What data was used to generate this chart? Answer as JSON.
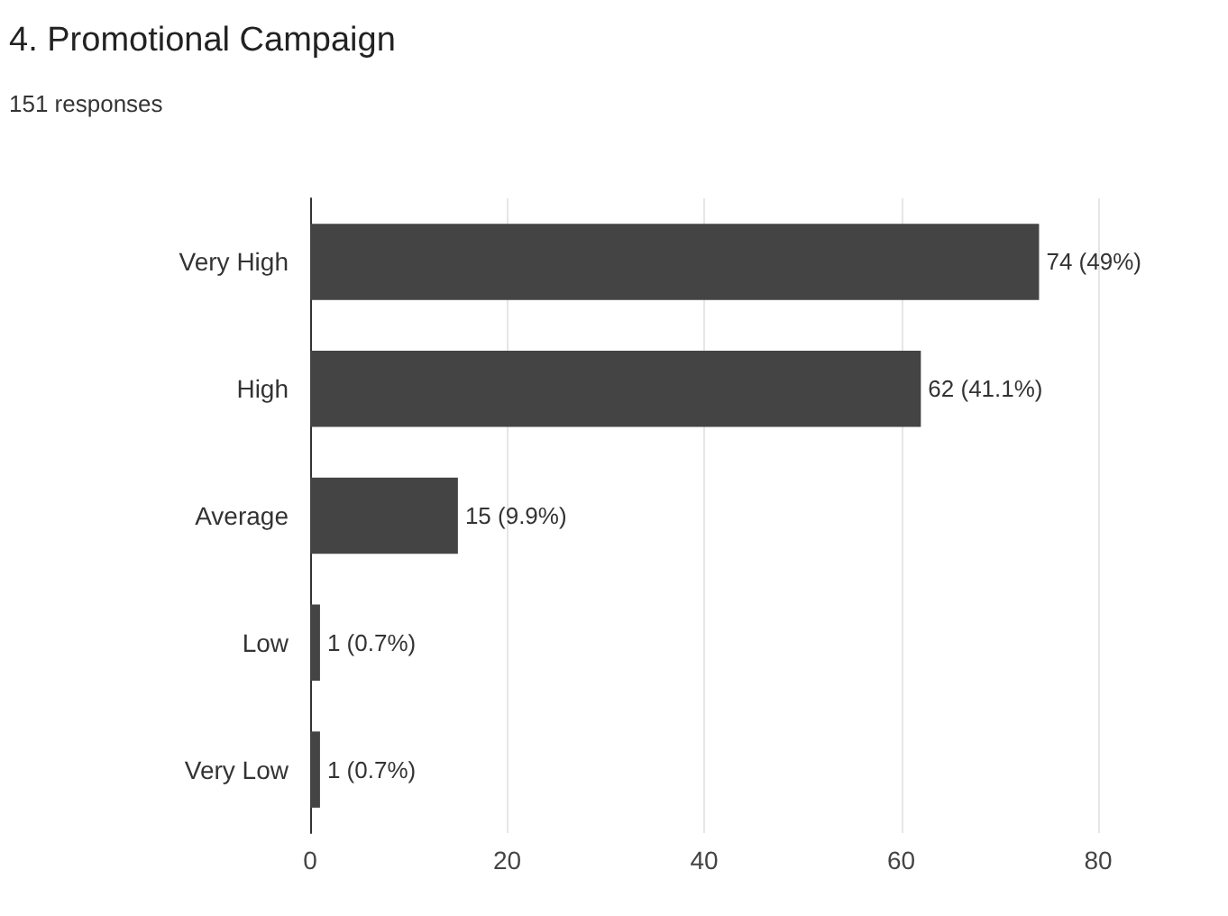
{
  "chart_data": {
    "type": "bar",
    "orientation": "horizontal",
    "title": "4. Promotional Campaign",
    "subtitle": "151 responses",
    "categories": [
      "Very High",
      "High",
      "Average",
      "Low",
      "Very Low"
    ],
    "values": [
      74,
      62,
      15,
      1,
      1
    ],
    "value_labels": [
      "74 (49%)",
      "62 (41.1%)",
      "15 (9.9%)",
      "1 (0.7%)",
      "1 (0.7%)"
    ],
    "color": "#444444",
    "xlim": [
      0,
      80
    ],
    "xticks": [
      0,
      20,
      40,
      60,
      80
    ],
    "grid": "x"
  }
}
